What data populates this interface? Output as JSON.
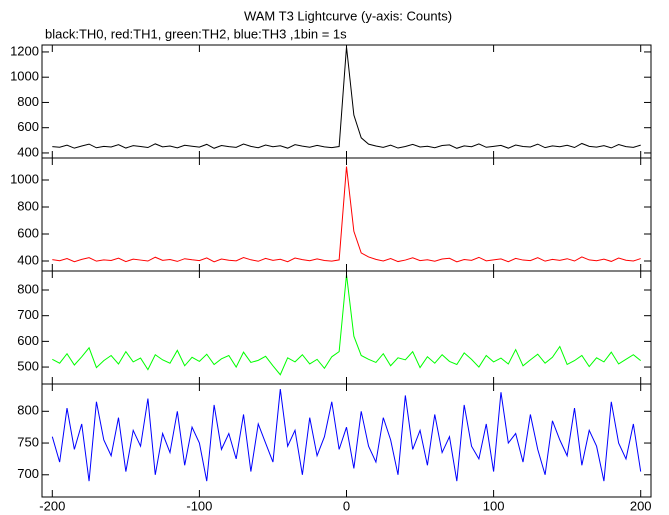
{
  "chart_data": [
    {
      "type": "line",
      "title": "WAM T3 Lightcurve (y-axis: Counts)",
      "subtitle": "black:TH0, red:TH1, green:TH2, blue:TH3 ,1bin = 1s",
      "color": "#000000",
      "x": [
        -200,
        -195,
        -190,
        -185,
        -180,
        -175,
        -170,
        -165,
        -160,
        -155,
        -150,
        -145,
        -140,
        -135,
        -130,
        -125,
        -120,
        -115,
        -110,
        -105,
        -100,
        -95,
        -90,
        -85,
        -80,
        -75,
        -70,
        -65,
        -60,
        -55,
        -50,
        -45,
        -40,
        -35,
        -30,
        -25,
        -20,
        -15,
        -10,
        -5,
        0,
        5,
        10,
        15,
        20,
        25,
        30,
        35,
        40,
        45,
        50,
        55,
        60,
        65,
        70,
        75,
        80,
        85,
        90,
        95,
        100,
        105,
        110,
        115,
        120,
        125,
        130,
        135,
        140,
        145,
        150,
        155,
        160,
        165,
        170,
        175,
        180,
        185,
        190,
        195,
        200
      ],
      "values": [
        450,
        445,
        462,
        438,
        455,
        470,
        441,
        452,
        447,
        466,
        439,
        458,
        451,
        443,
        472,
        448,
        455,
        440,
        461,
        453,
        446,
        468,
        437,
        459,
        450,
        444,
        471,
        452,
        441,
        463,
        449,
        457,
        438,
        466,
        454,
        445,
        460,
        448,
        442,
        451,
        1240,
        700,
        520,
        470,
        455,
        444,
        462,
        439,
        451,
        468,
        447,
        453,
        441,
        459,
        464,
        437,
        456,
        449,
        472,
        445,
        452,
        460,
        438,
        463,
        451,
        447,
        470,
        442,
        456,
        449,
        461,
        443,
        475,
        452,
        446,
        458,
        440,
        467,
        450,
        444,
        462
      ],
      "xlim": [
        -207,
        207
      ],
      "ylim": [
        360,
        1255
      ],
      "yticks": [
        400,
        600,
        800,
        1000,
        1200
      ]
    },
    {
      "type": "line",
      "color": "#ff0000",
      "x": [
        -200,
        -195,
        -190,
        -185,
        -180,
        -175,
        -170,
        -165,
        -160,
        -155,
        -150,
        -145,
        -140,
        -135,
        -130,
        -125,
        -120,
        -115,
        -110,
        -105,
        -100,
        -95,
        -90,
        -85,
        -80,
        -75,
        -70,
        -65,
        -60,
        -55,
        -50,
        -45,
        -40,
        -35,
        -30,
        -25,
        -20,
        -15,
        -10,
        -5,
        0,
        5,
        10,
        15,
        20,
        25,
        30,
        35,
        40,
        45,
        50,
        55,
        60,
        65,
        70,
        75,
        80,
        85,
        90,
        95,
        100,
        105,
        110,
        115,
        120,
        125,
        130,
        135,
        140,
        145,
        150,
        155,
        160,
        165,
        170,
        175,
        180,
        185,
        190,
        195,
        200
      ],
      "values": [
        410,
        402,
        418,
        395,
        412,
        425,
        399,
        408,
        404,
        421,
        396,
        414,
        407,
        400,
        428,
        405,
        411,
        397,
        417,
        409,
        403,
        423,
        394,
        415,
        406,
        401,
        426,
        409,
        398,
        419,
        405,
        413,
        395,
        422,
        410,
        402,
        416,
        404,
        399,
        408,
        1100,
        620,
        460,
        430,
        412,
        400,
        418,
        396,
        407,
        424,
        403,
        409,
        398,
        415,
        420,
        394,
        411,
        405,
        427,
        401,
        408,
        416,
        395,
        419,
        407,
        403,
        425,
        399,
        412,
        405,
        417,
        400,
        430,
        408,
        402,
        414,
        397,
        422,
        406,
        400,
        418
      ],
      "xlim": [
        -207,
        207
      ],
      "ylim": [
        326,
        1163
      ],
      "yticks": [
        400,
        600,
        800,
        1000
      ]
    },
    {
      "type": "line",
      "color": "#00ff00",
      "x": [
        -200,
        -195,
        -190,
        -185,
        -180,
        -175,
        -170,
        -165,
        -160,
        -155,
        -150,
        -145,
        -140,
        -135,
        -130,
        -125,
        -120,
        -115,
        -110,
        -105,
        -100,
        -95,
        -90,
        -85,
        -80,
        -75,
        -70,
        -65,
        -60,
        -55,
        -50,
        -45,
        -40,
        -35,
        -30,
        -25,
        -20,
        -15,
        -10,
        -5,
        0,
        5,
        10,
        15,
        20,
        25,
        30,
        35,
        40,
        45,
        50,
        55,
        60,
        65,
        70,
        75,
        80,
        85,
        90,
        95,
        100,
        105,
        110,
        115,
        120,
        125,
        130,
        135,
        140,
        145,
        150,
        155,
        160,
        165,
        170,
        175,
        180,
        185,
        190,
        195,
        200
      ],
      "values": [
        530,
        515,
        552,
        508,
        540,
        575,
        498,
        525,
        545,
        512,
        560,
        520,
        535,
        490,
        548,
        528,
        515,
        565,
        505,
        538,
        522,
        550,
        510,
        532,
        545,
        500,
        558,
        518,
        526,
        542,
        505,
        470,
        536,
        520,
        548,
        512,
        530,
        495,
        540,
        560,
        860,
        620,
        545,
        530,
        518,
        552,
        505,
        536,
        528,
        560,
        498,
        540,
        515,
        548,
        522,
        510,
        555,
        530,
        500,
        545,
        520,
        535,
        512,
        568,
        505,
        528,
        550,
        515,
        538,
        580,
        510,
        525,
        545,
        502,
        536,
        520,
        558,
        512,
        530,
        548,
        525
      ],
      "xlim": [
        -207,
        207
      ],
      "ylim": [
        434,
        874
      ],
      "yticks": [
        500,
        600,
        700,
        800
      ]
    },
    {
      "type": "line",
      "color": "#0000ff",
      "x": [
        -200,
        -195,
        -190,
        -185,
        -180,
        -175,
        -170,
        -165,
        -160,
        -155,
        -150,
        -145,
        -140,
        -135,
        -130,
        -125,
        -120,
        -115,
        -110,
        -105,
        -100,
        -95,
        -90,
        -85,
        -80,
        -75,
        -70,
        -65,
        -60,
        -55,
        -50,
        -45,
        -40,
        -35,
        -30,
        -25,
        -20,
        -15,
        -10,
        -5,
        0,
        5,
        10,
        15,
        20,
        25,
        30,
        35,
        40,
        45,
        50,
        55,
        60,
        65,
        70,
        75,
        80,
        85,
        90,
        95,
        100,
        105,
        110,
        115,
        120,
        125,
        130,
        135,
        140,
        145,
        150,
        155,
        160,
        165,
        170,
        175,
        180,
        185,
        190,
        195,
        200
      ],
      "values": [
        760,
        720,
        805,
        740,
        780,
        690,
        815,
        755,
        730,
        790,
        705,
        770,
        745,
        820,
        700,
        765,
        735,
        800,
        715,
        775,
        750,
        690,
        810,
        740,
        765,
        725,
        795,
        705,
        780,
        750,
        720,
        835,
        745,
        770,
        700,
        790,
        730,
        760,
        815,
        740,
        775,
        710,
        800,
        745,
        720,
        790,
        755,
        700,
        825,
        740,
        770,
        715,
        795,
        735,
        760,
        690,
        810,
        745,
        725,
        780,
        705,
        830,
        750,
        765,
        720,
        795,
        740,
        700,
        785,
        755,
        730,
        805,
        715,
        770,
        745,
        690,
        815,
        750,
        725,
        780,
        705
      ],
      "xlim": [
        -207,
        207
      ],
      "ylim": [
        665,
        843
      ],
      "yticks": [
        700,
        750,
        800
      ],
      "xticks": [
        -200,
        -100,
        0,
        100,
        200
      ]
    }
  ]
}
